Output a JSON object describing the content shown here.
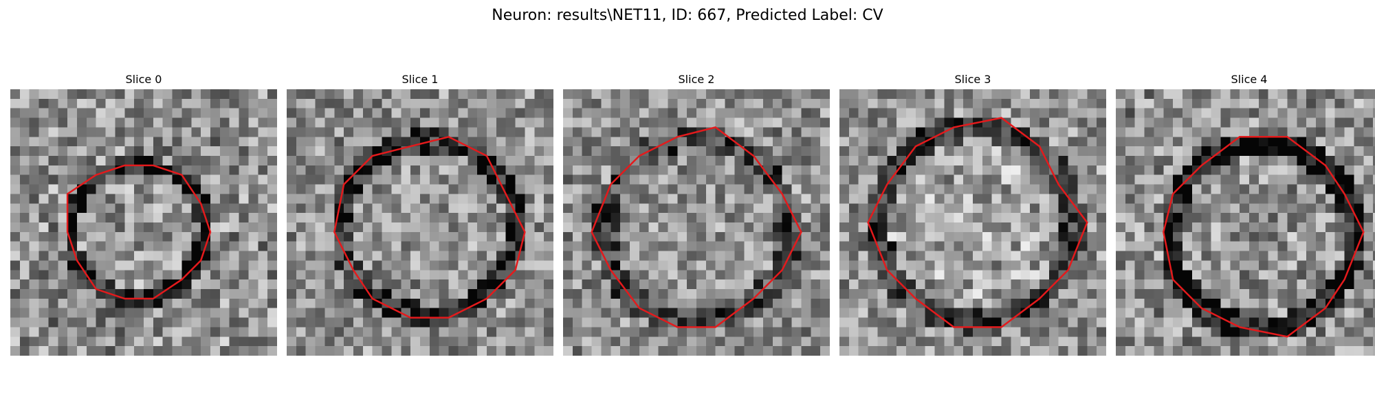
{
  "figure": {
    "title": "Neuron: results\\NET11, ID: 667, Predicted Label: CV",
    "contour_color": "#e41a1c"
  },
  "panels": [
    {
      "title": "Slice 0",
      "seed": 101,
      "contrast": 1.0,
      "ring_dark": 0.55,
      "inner_bright": 0.1,
      "center": [
        0.48,
        0.53
      ],
      "radius": 0.27
    },
    {
      "title": "Slice 1",
      "seed": 202,
      "contrast": 0.9,
      "ring_dark": 0.45,
      "inner_bright": 0.05,
      "center": [
        0.53,
        0.52
      ],
      "radius": 0.35
    },
    {
      "title": "Slice 2",
      "seed": 303,
      "contrast": 0.9,
      "ring_dark": 0.35,
      "inner_bright": 0.05,
      "center": [
        0.5,
        0.53
      ],
      "radius": 0.37
    },
    {
      "title": "Slice 3",
      "seed": 404,
      "contrast": 0.9,
      "ring_dark": 0.4,
      "inner_bright": 0.18,
      "center": [
        0.51,
        0.51
      ],
      "radius": 0.39
    },
    {
      "title": "Slice 4",
      "seed": 505,
      "contrast": 1.0,
      "ring_dark": 0.6,
      "inner_bright": 0.05,
      "center": [
        0.55,
        0.55
      ],
      "radius": 0.37
    }
  ]
}
